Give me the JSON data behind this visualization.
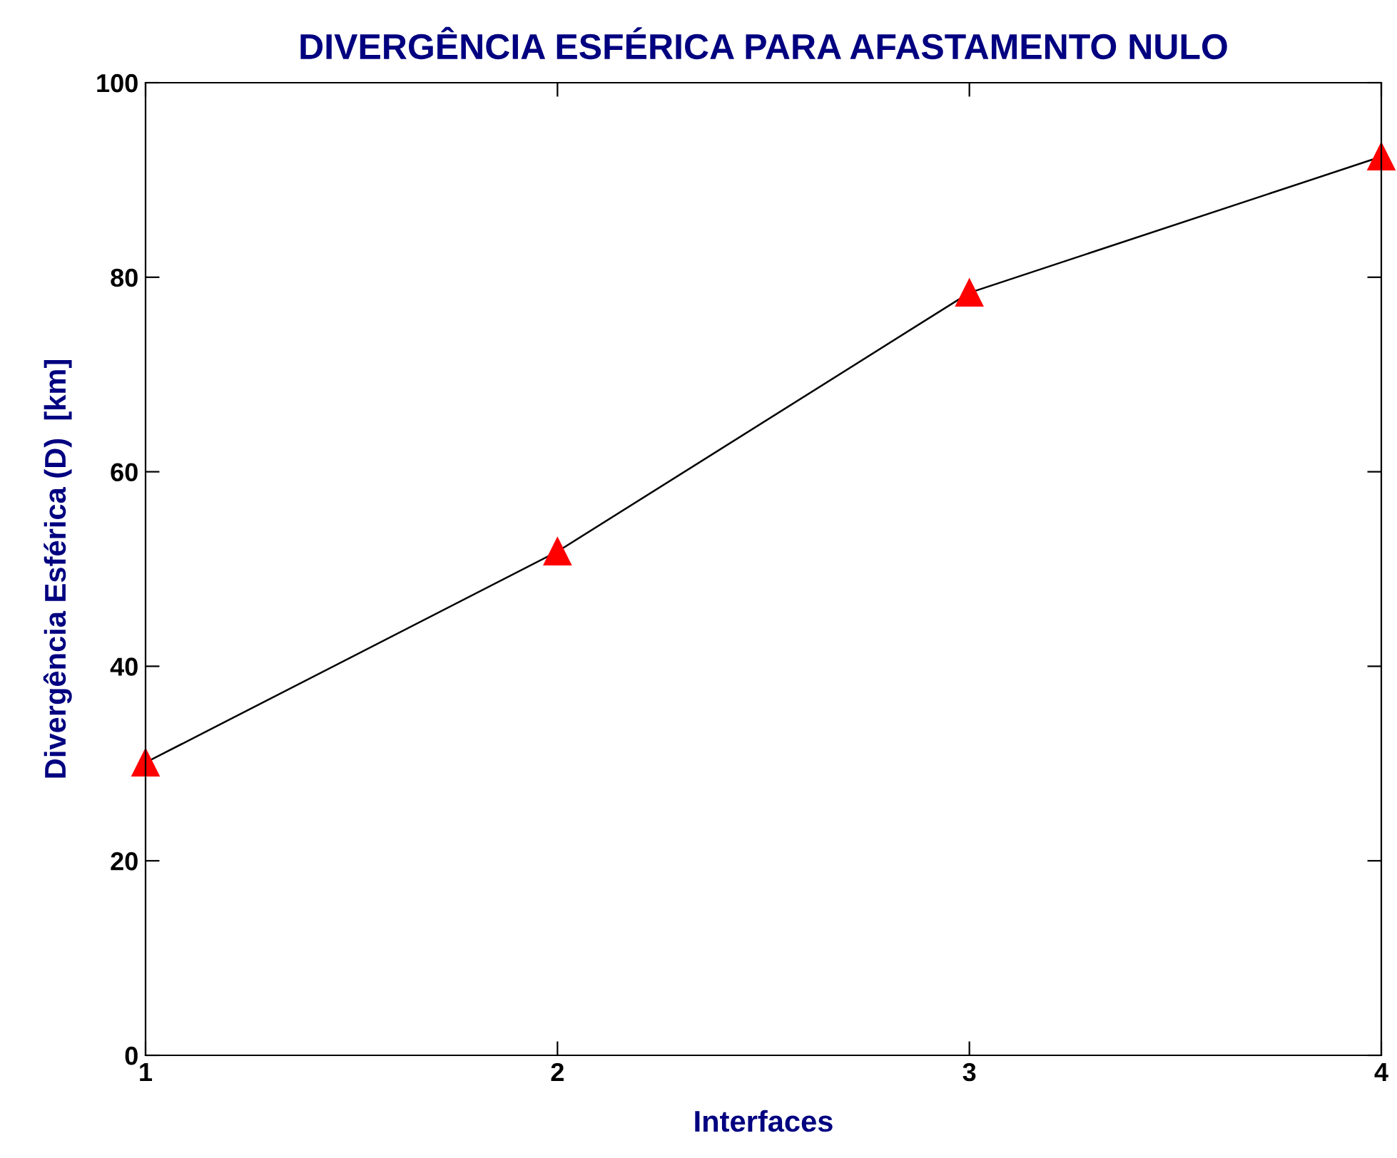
{
  "chart_data": {
    "type": "line",
    "title": "DIVERGÊNCIA ESFÉRICA PARA AFASTAMENTO NULO",
    "xlabel": "Interfaces",
    "ylabel": "Divergência Esférica (D)  [km]",
    "x": [
      1,
      2,
      3,
      4
    ],
    "series": [
      {
        "color": "#000000",
        "values": [
          30.1,
          51.8,
          78.4,
          92.4
        ]
      }
    ],
    "marker": "triangle",
    "line_style": "solid",
    "xlim": [
      1,
      4
    ],
    "xticks": [
      1,
      2,
      3,
      4
    ],
    "ylim": [
      0,
      100
    ],
    "yticks": [
      0,
      20,
      40,
      60,
      80,
      100
    ],
    "grid": false,
    "legend": false
  }
}
